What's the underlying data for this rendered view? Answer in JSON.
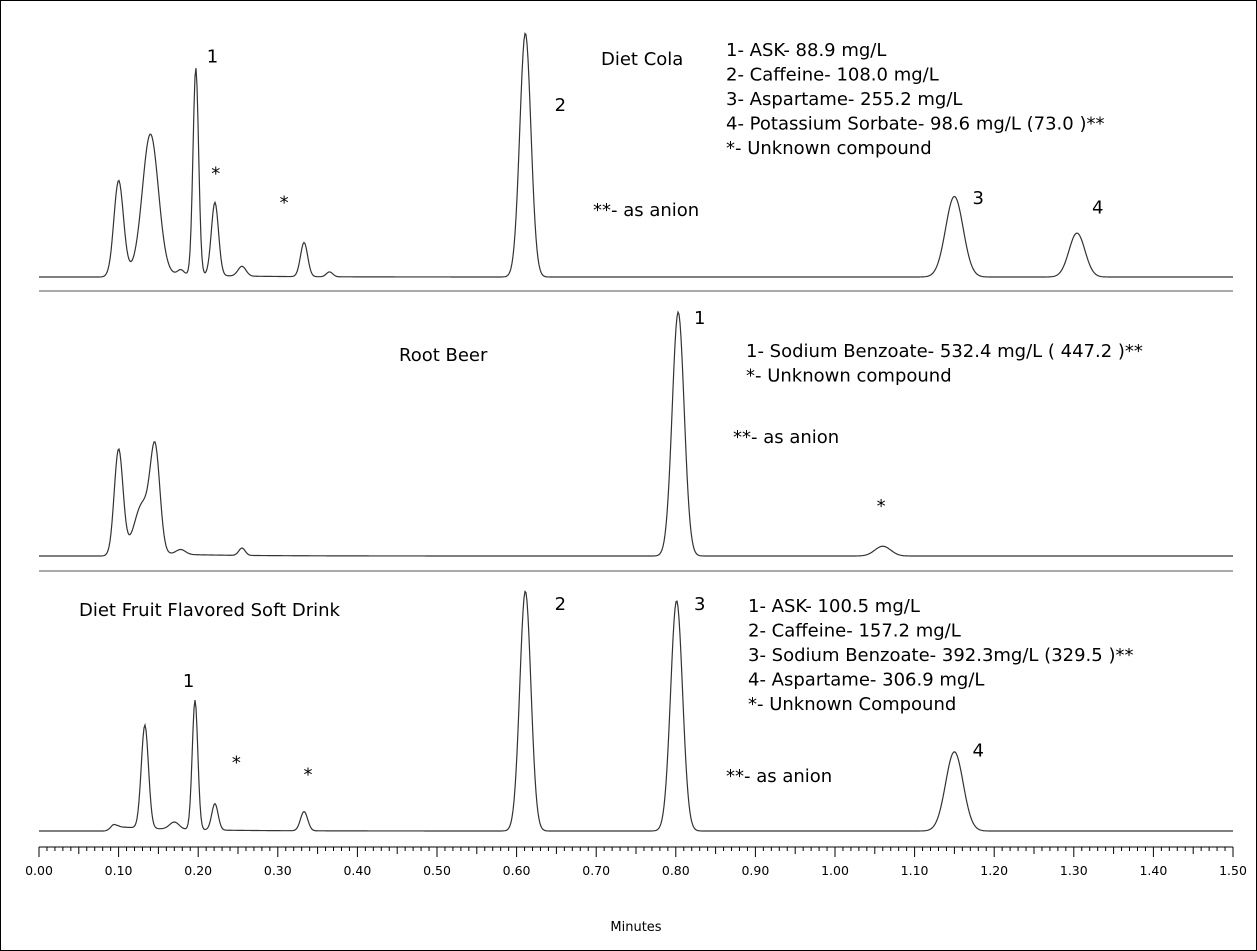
{
  "chart_data": {
    "type": "line",
    "xlabel": "Minutes",
    "xlim": [
      0.0,
      1.5
    ],
    "x_ticks": [
      "0.00",
      "0.10",
      "0.20",
      "0.30",
      "0.40",
      "0.50",
      "0.60",
      "0.70",
      "0.80",
      "0.90",
      "1.00",
      "1.10",
      "1.20",
      "1.30",
      "1.40",
      "1.50"
    ],
    "panels": [
      {
        "name": "Diet Cola",
        "title": "Diet Cola",
        "baseline": 0.03,
        "peaks": [
          {
            "x": 0.1,
            "h": 0.37,
            "w": 0.006
          },
          {
            "x": 0.14,
            "h": 0.57,
            "w": 0.01
          },
          {
            "x": 0.178,
            "h": 0.02,
            "w": 0.004
          },
          {
            "x": 0.197,
            "h": 0.85,
            "w": 0.0035
          },
          {
            "x": 0.221,
            "h": 0.3,
            "w": 0.0045
          },
          {
            "x": 0.255,
            "h": 0.04,
            "w": 0.005
          },
          {
            "x": 0.333,
            "h": 0.14,
            "w": 0.0045
          },
          {
            "x": 0.365,
            "h": 0.02,
            "w": 0.004
          },
          {
            "x": 0.611,
            "h": 1.0,
            "w": 0.007
          },
          {
            "x": 1.15,
            "h": 0.33,
            "w": 0.011
          },
          {
            "x": 1.304,
            "h": 0.18,
            "w": 0.01
          }
        ],
        "peak_labels": [
          {
            "text": "1",
            "x": 0.218,
            "y": 0.88
          },
          {
            "text": "*",
            "x": 0.222,
            "y": 0.4
          },
          {
            "text": "*",
            "x": 0.308,
            "y": 0.28
          },
          {
            "text": "2",
            "x": 0.655,
            "y": 0.68
          },
          {
            "text": "3",
            "x": 1.18,
            "y": 0.3
          },
          {
            "text": "4",
            "x": 1.33,
            "y": 0.26
          }
        ],
        "legend": [
          "1- ASK- 88.9 mg/L",
          "2- Caffeine- 108.0 mg/L",
          "3- Aspartame- 255.2 mg/L",
          "4- Potassium Sorbate- 98.6 mg/L (73.0 )**",
          "*- Unknown compound"
        ],
        "note": "**- as anion"
      },
      {
        "name": "Root Beer",
        "title": "Root Beer",
        "baseline": 0.02,
        "peaks": [
          {
            "x": 0.1,
            "h": 0.42,
            "w": 0.0055
          },
          {
            "x": 0.13,
            "h": 0.2,
            "w": 0.01
          },
          {
            "x": 0.146,
            "h": 0.4,
            "w": 0.006
          },
          {
            "x": 0.178,
            "h": 0.02,
            "w": 0.006
          },
          {
            "x": 0.255,
            "h": 0.03,
            "w": 0.004
          },
          {
            "x": 0.803,
            "h": 1.0,
            "w": 0.0075
          },
          {
            "x": 1.06,
            "h": 0.04,
            "w": 0.01
          }
        ],
        "peak_labels": [
          {
            "text": "1",
            "x": 0.83,
            "y": 0.95
          },
          {
            "text": "*",
            "x": 1.058,
            "y": 0.18
          }
        ],
        "legend": [
          "1- Sodium Benzoate- 532.4 mg/L ( 447.2 )**",
          "*- Unknown compound"
        ],
        "note": "**- as anion"
      },
      {
        "name": "Diet Fruit Flavored Soft Drink",
        "title": "Diet Fruit Flavored Soft Drink",
        "baseline": 0.02,
        "peaks": [
          {
            "x": 0.093,
            "h": 0.02,
            "w": 0.004
          },
          {
            "x": 0.133,
            "h": 0.43,
            "w": 0.0045
          },
          {
            "x": 0.17,
            "h": 0.03,
            "w": 0.006
          },
          {
            "x": 0.196,
            "h": 0.54,
            "w": 0.0035
          },
          {
            "x": 0.221,
            "h": 0.11,
            "w": 0.004
          },
          {
            "x": 0.333,
            "h": 0.08,
            "w": 0.0045
          },
          {
            "x": 0.611,
            "h": 1.0,
            "w": 0.007
          },
          {
            "x": 0.801,
            "h": 0.96,
            "w": 0.0075
          },
          {
            "x": 1.15,
            "h": 0.33,
            "w": 0.011
          }
        ],
        "peak_labels": [
          {
            "text": "1",
            "x": 0.188,
            "y": 0.6
          },
          {
            "text": "*",
            "x": 0.248,
            "y": 0.26
          },
          {
            "text": "*",
            "x": 0.338,
            "y": 0.21
          },
          {
            "text": "2",
            "x": 0.655,
            "y": 0.92
          },
          {
            "text": "3",
            "x": 0.83,
            "y": 0.92
          },
          {
            "text": "4",
            "x": 1.18,
            "y": 0.31
          }
        ],
        "legend": [
          "1- ASK- 100.5 mg/L",
          "2- Caffeine- 157.2 mg/L",
          "3- Sodium Benzoate- 392.3mg/L (329.5 )**",
          "4- Aspartame- 306.9 mg/L",
          "*- Unknown Compound"
        ],
        "note": "**- as anion"
      }
    ]
  }
}
